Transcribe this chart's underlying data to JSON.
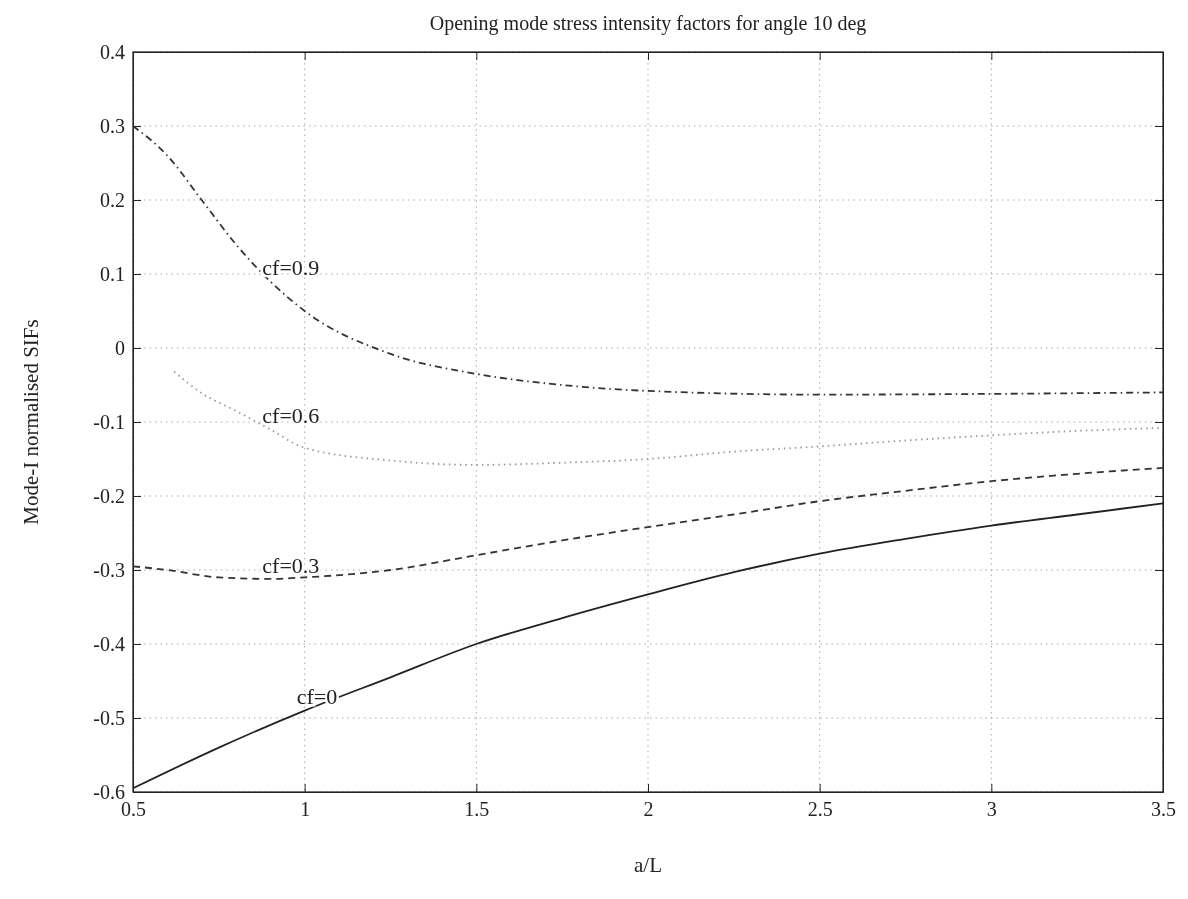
{
  "chart_data": {
    "type": "line",
    "title": "Opening mode stress intensity factors for angle 10 deg",
    "xlabel": "a/L",
    "ylabel": "Mode-I normalised SIFs",
    "xlim": [
      0.5,
      3.5
    ],
    "xticks": [
      0.5,
      1,
      1.5,
      2,
      2.5,
      3,
      3.5
    ],
    "ylim": [
      -0.6,
      0.4
    ],
    "yticks": [
      -0.6,
      -0.5,
      -0.4,
      -0.3,
      -0.2,
      -0.1,
      0,
      0.1,
      0.2,
      0.3,
      0.4
    ],
    "grid": true,
    "series": [
      {
        "name": "cf=0",
        "color": "#222222",
        "line_style": "solid",
        "x": [
          0.5,
          0.75,
          1,
          1.25,
          1.5,
          1.75,
          2,
          2.25,
          2.5,
          2.75,
          3,
          3.25,
          3.5
        ],
        "values": [
          -0.595,
          -0.54,
          -0.49,
          -0.445,
          -0.4,
          -0.365,
          -0.333,
          -0.303,
          -0.278,
          -0.258,
          -0.24,
          -0.225,
          -0.21
        ]
      },
      {
        "name": "cf=0.3",
        "color": "#333333",
        "line_style": "dashed",
        "x": [
          0.5,
          0.6,
          0.75,
          0.9,
          1,
          1.25,
          1.5,
          1.75,
          2,
          2.25,
          2.5,
          2.75,
          3,
          3.25,
          3.5
        ],
        "values": [
          -0.295,
          -0.3,
          -0.31,
          -0.312,
          -0.31,
          -0.3,
          -0.28,
          -0.26,
          -0.242,
          -0.225,
          -0.207,
          -0.193,
          -0.18,
          -0.17,
          -0.162
        ]
      },
      {
        "name": "cf=0.6",
        "color": "#999999",
        "line_style": "dotted",
        "x": [
          0.62,
          0.7,
          0.8,
          0.9,
          1,
          1.25,
          1.5,
          1.75,
          2,
          2.25,
          2.5,
          2.75,
          3,
          3.25,
          3.5
        ],
        "values": [
          -0.032,
          -0.061,
          -0.085,
          -0.11,
          -0.135,
          -0.152,
          -0.158,
          -0.155,
          -0.15,
          -0.14,
          -0.133,
          -0.125,
          -0.118,
          -0.112,
          -0.108
        ]
      },
      {
        "name": "cf=0.9",
        "color": "#333333",
        "line_style": "dashdot",
        "x": [
          0.5,
          0.6,
          0.7,
          0.8,
          0.9,
          1,
          1.25,
          1.5,
          1.75,
          2,
          2.5,
          3,
          3.5
        ],
        "values": [
          0.3,
          0.26,
          0.2,
          0.14,
          0.09,
          0.05,
          -0.008,
          -0.035,
          -0.05,
          -0.058,
          -0.063,
          -0.062,
          -0.06
        ]
      }
    ]
  }
}
